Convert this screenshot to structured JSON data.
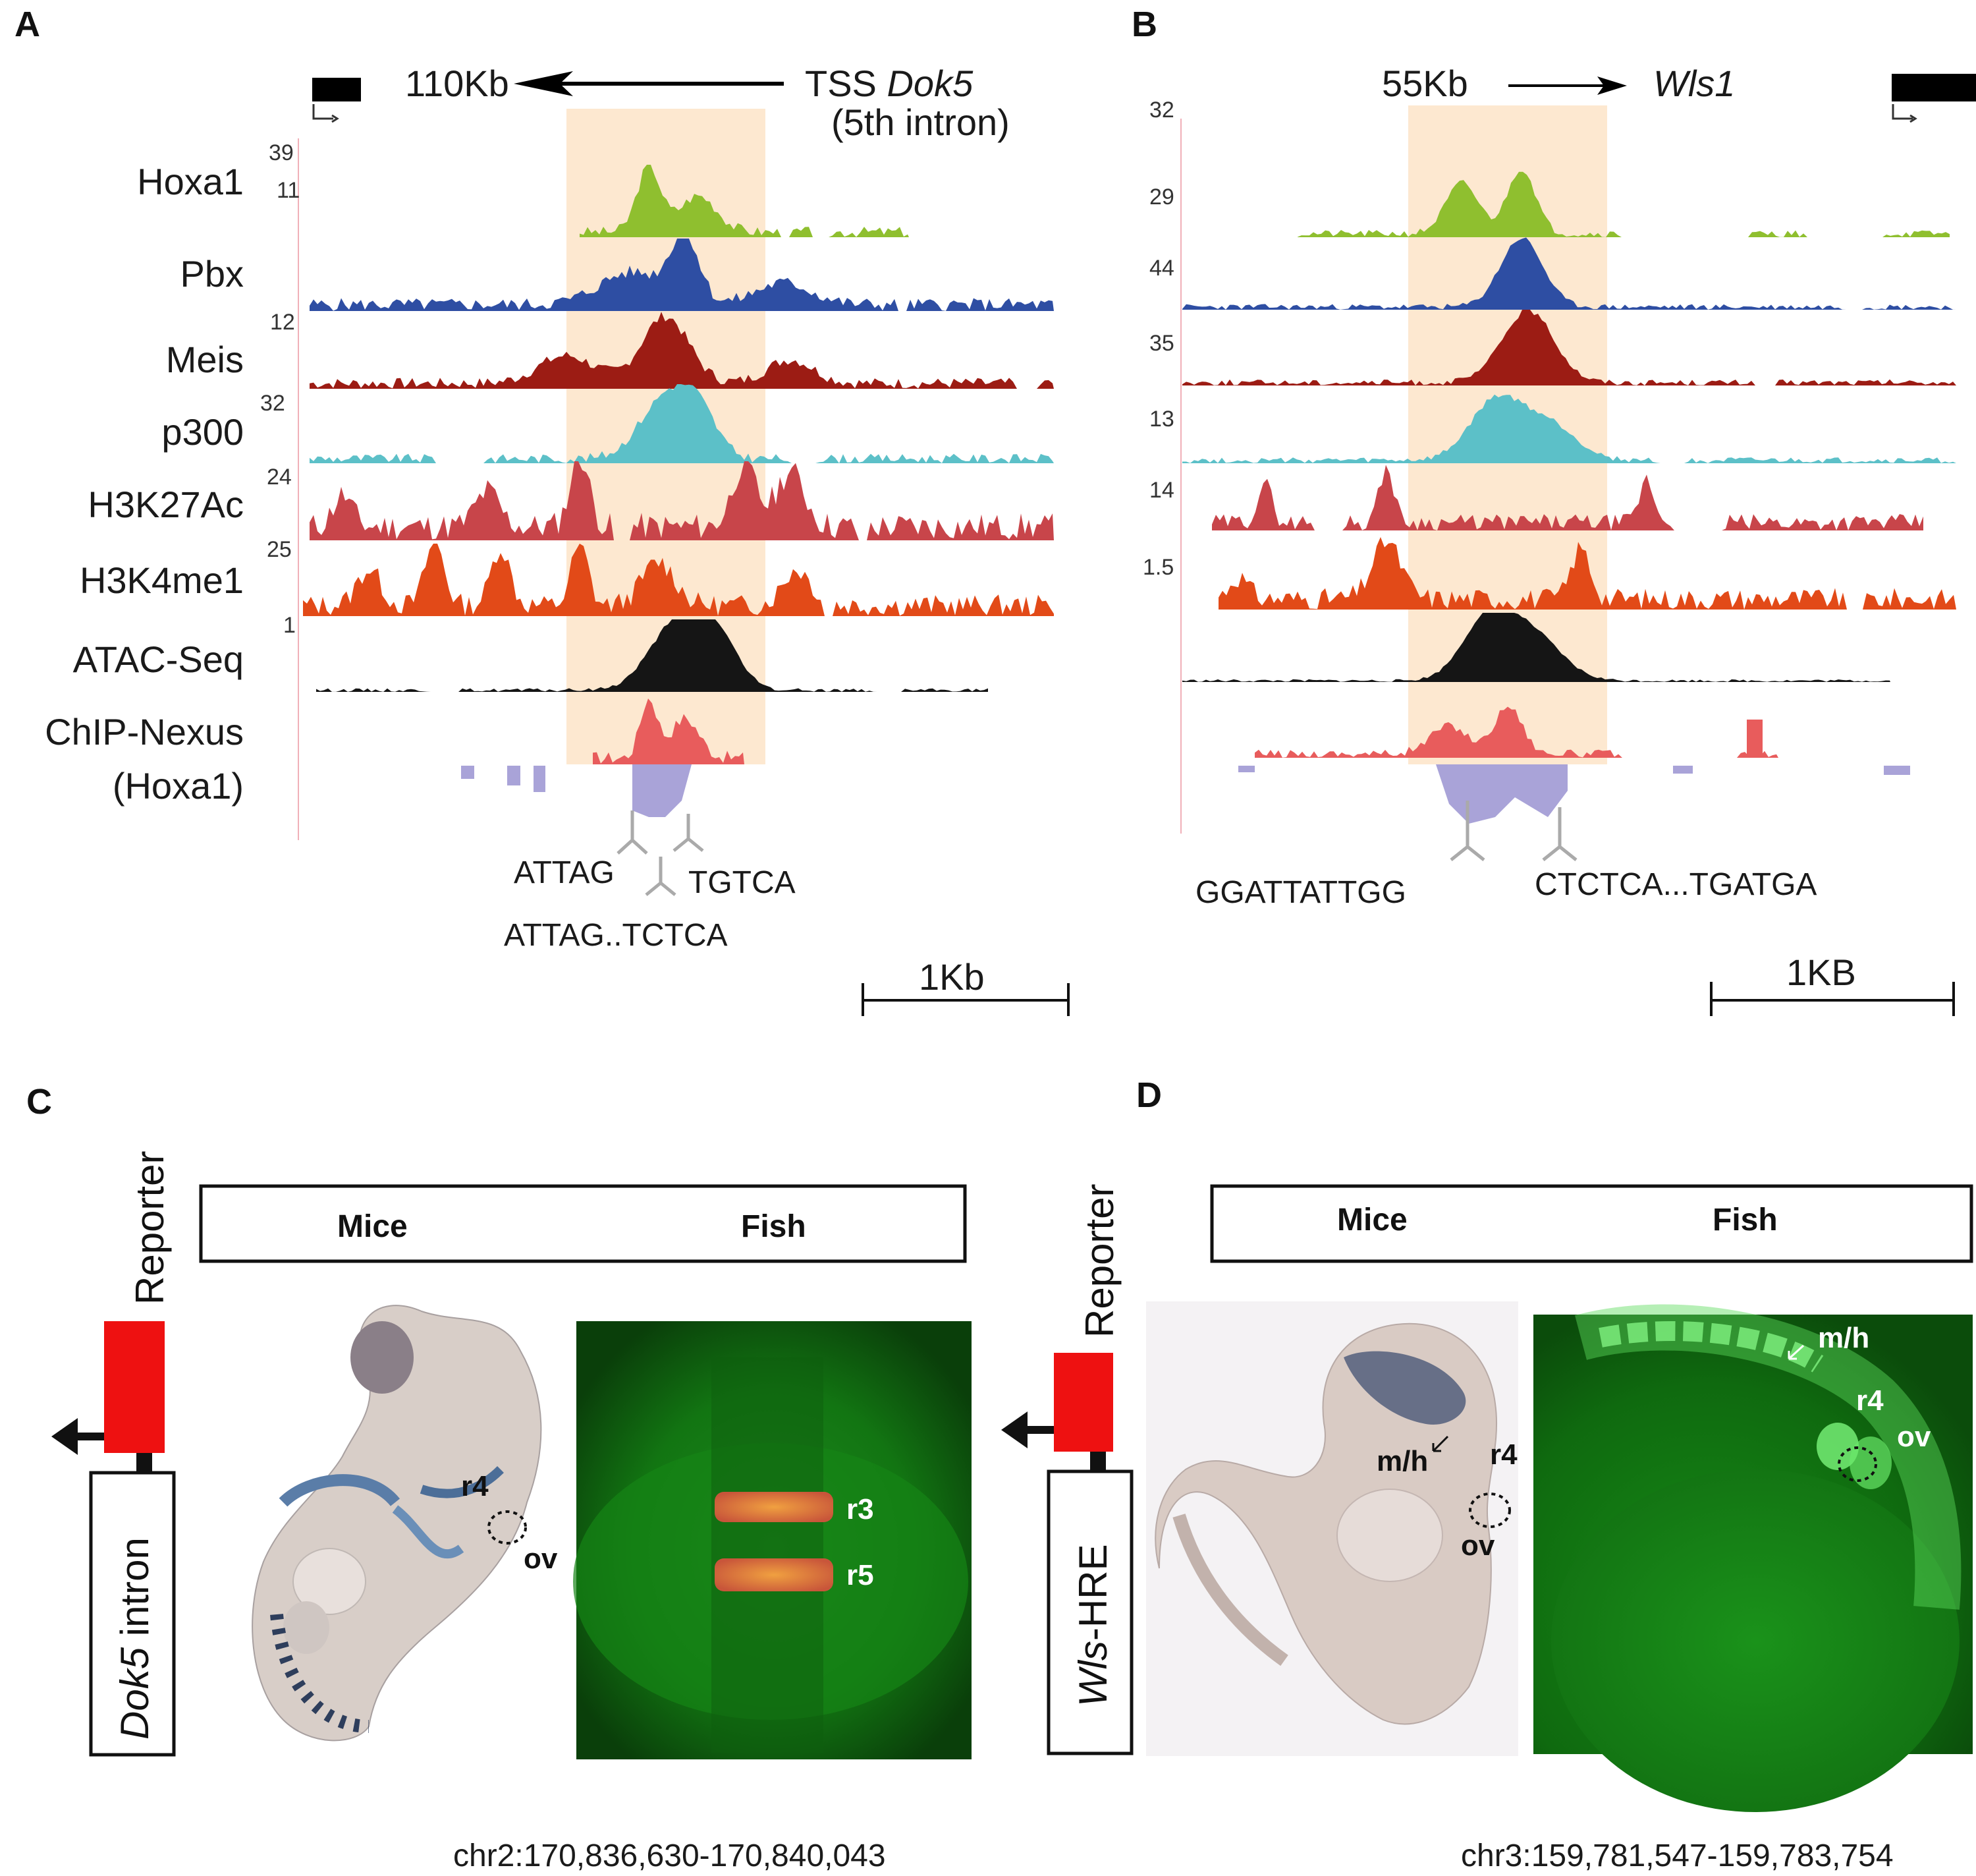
{
  "panel_letters": {
    "a": "A",
    "b": "B",
    "c": "C",
    "d": "D"
  },
  "panel_a": {
    "distance": "110Kb",
    "tss_prefix": "TSS",
    "gene": "Dok5",
    "note": "(5th intron)",
    "tracks": [
      {
        "label": "Hoxa1",
        "max": "11",
        "color": "#8fbf2f"
      },
      {
        "label": "Pbx",
        "max": "",
        "color": "#2e4ea3"
      },
      {
        "label": "Meis",
        "max": "12",
        "color": "#9c1c14"
      },
      {
        "label": "p300",
        "max": "32",
        "color": "#5cc0c8"
      },
      {
        "label": "H3K27Ac",
        "max": "24",
        "color": "#c8454a"
      },
      {
        "label": "H3K4me1",
        "max": "25",
        "color": "#e24a18"
      },
      {
        "label": "ATAC-Seq",
        "max": "1",
        "color": "#151515"
      },
      {
        "label": "ChIP-Nexus",
        "max": "",
        "color": "#e85c5c"
      }
    ],
    "top_scale": "39",
    "nexus_sublabel": "(Hoxa1)",
    "motifs": [
      "ATTAG",
      "TGTCA",
      "ATTAG..TCTCA"
    ],
    "scale_bar": "1Kb"
  },
  "panel_b": {
    "distance": "55Kb",
    "gene": "Wls1",
    "scales": [
      "32",
      "29",
      "44",
      "35",
      "13",
      "14",
      "1.5"
    ],
    "motifs": [
      "GGATTATTGG",
      "CTCTCA...TGATGA"
    ],
    "scale_bar": "1KB"
  },
  "panel_c": {
    "header_left": "Mice",
    "header_right": "Fish",
    "reporter": "Reporter",
    "construct_italic": "Dok5",
    "construct_rest": " intron",
    "mouse_labels": [
      "r4",
      "ov"
    ],
    "fish_labels": [
      "r3",
      "r5"
    ],
    "coordinates": "chr2:170,836,630-170,840,043"
  },
  "panel_d": {
    "header_left": "Mice",
    "header_right": "Fish",
    "reporter": "Reporter",
    "construct_italic": "Wls",
    "construct_rest": "-HRE",
    "mouse_labels": [
      "m/h",
      "r4",
      "ov"
    ],
    "fish_labels": [
      "m/h",
      "r4",
      "ov"
    ],
    "coordinates": "chr3:159,781,547-159,783,754"
  },
  "colors": {
    "highlight": "#fde8d0",
    "nexus_positive": "#e85c5c",
    "nexus_negative": "#a9a3d8",
    "reporter_box": "#ee1111",
    "fish_background": "#0a4a0a"
  }
}
